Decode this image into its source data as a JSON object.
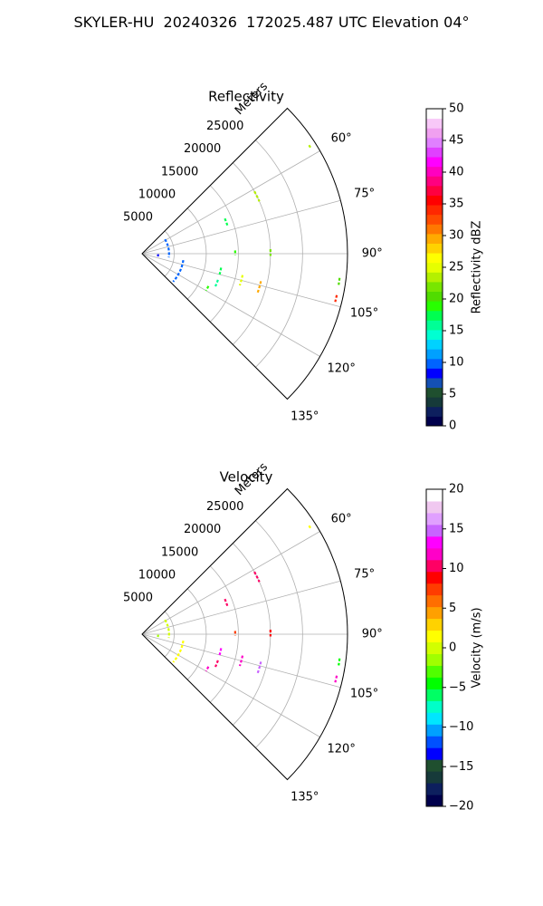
{
  "figure": {
    "suptitle": "SKYLER-HU  20240326  172025.487 UTC Elevation 04°"
  },
  "chart_data": [
    {
      "type": "polar-sector",
      "title": "Reflectivity",
      "range_axis_label": "Meters",
      "range_ticks": [
        5000,
        10000,
        15000,
        20000,
        25000
      ],
      "range_tick_labels": [
        "5000",
        "10000",
        "15000",
        "20000",
        "25000"
      ],
      "rlim": [
        0,
        32000
      ],
      "theta_range_deg": [
        45,
        135
      ],
      "theta_ticks_deg": [
        45,
        60,
        75,
        90,
        105,
        120,
        135
      ],
      "theta_tick_labels": [
        "60°",
        "75°",
        "90°",
        "105°",
        "120°",
        "135°"
      ],
      "colorbar": {
        "label": "Reflectivity dBZ",
        "range": [
          0,
          50
        ],
        "ticks": [
          "0",
          "5",
          "10",
          "15",
          "20",
          "25",
          "30",
          "35",
          "40",
          "45",
          "50"
        ]
      },
      "echo_arcs": [
        {
          "az_from": 58,
          "az_to": 98,
          "r": 4200,
          "value": 10
        },
        {
          "az_from": 99,
          "az_to": 132,
          "r": 6500,
          "value": 10
        },
        {
          "az_from": 92,
          "az_to": 100,
          "r": 2500,
          "value": 8
        },
        {
          "az_from": 67,
          "az_to": 72,
          "r": 14000,
          "value": 17
        },
        {
          "az_from": 61,
          "az_to": 66,
          "r": 20000,
          "value": 24
        },
        {
          "az_from": 88,
          "az_to": 91,
          "r": 14500,
          "value": 18
        },
        {
          "az_from": 88,
          "az_to": 91,
          "r": 20000,
          "value": 22
        },
        {
          "az_from": 100,
          "az_to": 105,
          "r": 12500,
          "value": 17
        },
        {
          "az_from": 102,
          "az_to": 108,
          "r": 16000,
          "value": 25
        },
        {
          "az_from": 103,
          "az_to": 109,
          "r": 19000,
          "value": 30
        },
        {
          "az_from": 109,
          "az_to": 114,
          "r": 12500,
          "value": 16
        },
        {
          "az_from": 116,
          "az_to": 120,
          "r": 11500,
          "value": 18
        },
        {
          "az_from": 97,
          "az_to": 99,
          "r": 31000,
          "value": 20
        },
        {
          "az_from": 102,
          "az_to": 104,
          "r": 31000,
          "value": 35
        },
        {
          "az_from": 57,
          "az_to": 58,
          "r": 31000,
          "value": 24
        }
      ]
    },
    {
      "type": "polar-sector",
      "title": "Velocity",
      "range_axis_label": "Meters",
      "range_ticks": [
        5000,
        10000,
        15000,
        20000,
        25000
      ],
      "range_tick_labels": [
        "5000",
        "10000",
        "15000",
        "20000",
        "25000"
      ],
      "rlim": [
        0,
        32000
      ],
      "theta_range_deg": [
        45,
        135
      ],
      "theta_ticks_deg": [
        45,
        60,
        75,
        90,
        105,
        120,
        135
      ],
      "theta_tick_labels": [
        "60°",
        "75°",
        "90°",
        "105°",
        "120°",
        "135°"
      ],
      "colorbar": {
        "label": "Velocity (m/s)",
        "range": [
          -20,
          20
        ],
        "ticks": [
          "−20",
          "−15",
          "−10",
          "−5",
          "0",
          "5",
          "10",
          "15",
          "20"
        ]
      },
      "echo_arcs": [
        {
          "az_from": 58,
          "az_to": 98,
          "r": 4200,
          "value": 0
        },
        {
          "az_from": 99,
          "az_to": 132,
          "r": 6500,
          "value": 1
        },
        {
          "az_from": 92,
          "az_to": 100,
          "r": 2500,
          "value": -2
        },
        {
          "az_from": 67,
          "az_to": 72,
          "r": 14000,
          "value": 10
        },
        {
          "az_from": 61,
          "az_to": 66,
          "r": 20000,
          "value": 11
        },
        {
          "az_from": 88,
          "az_to": 91,
          "r": 14500,
          "value": 8
        },
        {
          "az_from": 88,
          "az_to": 91,
          "r": 20000,
          "value": 9
        },
        {
          "az_from": 100,
          "az_to": 105,
          "r": 12500,
          "value": 14
        },
        {
          "az_from": 102,
          "az_to": 108,
          "r": 16000,
          "value": 12
        },
        {
          "az_from": 103,
          "az_to": 109,
          "r": 19000,
          "value": 16
        },
        {
          "az_from": 109,
          "az_to": 114,
          "r": 12500,
          "value": 11
        },
        {
          "az_from": 116,
          "az_to": 120,
          "r": 11500,
          "value": 12
        },
        {
          "az_from": 97,
          "az_to": 99,
          "r": 31000,
          "value": -4
        },
        {
          "az_from": 102,
          "az_to": 104,
          "r": 31000,
          "value": 12
        },
        {
          "az_from": 57,
          "az_to": 58,
          "r": 31000,
          "value": 2
        }
      ]
    }
  ],
  "colors": {
    "grid": "#b0b0b0",
    "frame": "#000000",
    "reflectivity_scale": [
      "#00004c",
      "#0d1f5e",
      "#163a3a",
      "#1f4f2f",
      "#1450b4",
      "#0000ff",
      "#0064ff",
      "#00a0ff",
      "#00d2ff",
      "#00ffd2",
      "#00ff96",
      "#00ff50",
      "#28ff00",
      "#50dc00",
      "#78e600",
      "#b4f000",
      "#e6ff00",
      "#ffff00",
      "#ffd200",
      "#ffaa00",
      "#ff7800",
      "#ff4b00",
      "#ff2800",
      "#ff0000",
      "#ff0040",
      "#ff0080",
      "#ff00c0",
      "#ff00ff",
      "#e040ff",
      "#e080ff",
      "#f0a0f0",
      "#f8c8f8",
      "#ffffff"
    ],
    "velocity_scale": [
      "#00004c",
      "#0d1f5e",
      "#163a3a",
      "#1f4f2f",
      "#0000ff",
      "#0050ff",
      "#00a0ff",
      "#00e6ff",
      "#00ffc8",
      "#00ff64",
      "#00ff00",
      "#50ff00",
      "#a0ff00",
      "#d2ff00",
      "#ffff00",
      "#ffd200",
      "#ffa000",
      "#ff6e00",
      "#ff3c00",
      "#ff0000",
      "#ff0064",
      "#ff00c8",
      "#ff00ff",
      "#c864ff",
      "#e0a0ff",
      "#f0c8f0",
      "#ffffff"
    ]
  }
}
